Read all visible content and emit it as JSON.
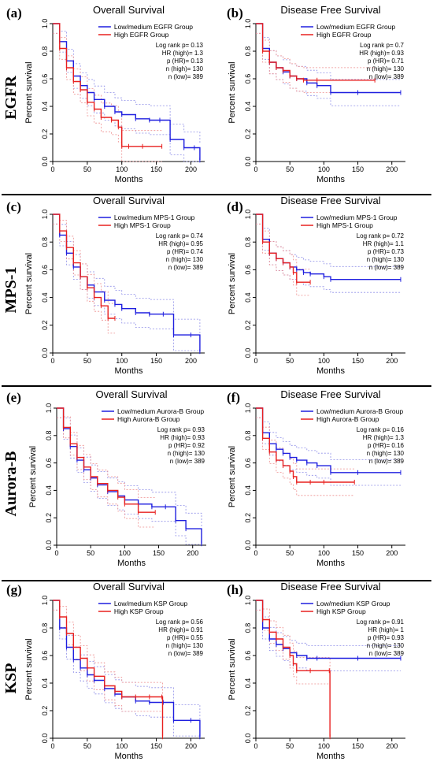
{
  "colors": {
    "low": "#1f1fdf",
    "high": "#e8201f",
    "low_ci": "#8f8fe8",
    "high_ci": "#ee8f8f"
  },
  "rows": [
    {
      "label": "EGFR"
    },
    {
      "label": "MPS-1"
    },
    {
      "label": "Aurora-B"
    },
    {
      "label": "KSP"
    }
  ],
  "chart_data": [
    {
      "panel": "(a)",
      "type": "line",
      "title": "Overall Survival",
      "xlabel": "Months",
      "ylabel": "Percent survival",
      "xlim": [
        0,
        220
      ],
      "ylim": [
        0,
        1
      ],
      "xticks": [
        "0",
        "50",
        "100",
        "150",
        "200"
      ],
      "yticks": [
        "0.0",
        "0.2",
        "0.4",
        "0.6",
        "0.8",
        "1.0"
      ],
      "legend": [
        "Low/medium EGFR Group",
        "High EGFR Group"
      ],
      "stats": [
        "Log rank p= 0.13",
        "HR (high)= 1.3",
        "p (HR)= 0.13",
        "n (high)= 130",
        "n (low)= 389"
      ],
      "series": [
        {
          "name": "Low/medium EGFR Group",
          "x": [
            0,
            10,
            20,
            30,
            40,
            50,
            60,
            75,
            90,
            100,
            120,
            140,
            155,
            170,
            190,
            205,
            213
          ],
          "y": [
            1,
            0.87,
            0.73,
            0.62,
            0.55,
            0.5,
            0.45,
            0.4,
            0.36,
            0.34,
            0.31,
            0.3,
            0.3,
            0.16,
            0.1,
            0.1,
            0.01
          ]
        },
        {
          "name": "High EGFR Group",
          "x": [
            0,
            10,
            20,
            30,
            40,
            50,
            60,
            70,
            85,
            95,
            100,
            110,
            130,
            158
          ],
          "y": [
            1,
            0.82,
            0.68,
            0.58,
            0.52,
            0.43,
            0.38,
            0.32,
            0.3,
            0.25,
            0.11,
            0.11,
            0.11,
            0.11
          ]
        }
      ]
    },
    {
      "panel": "(b)",
      "type": "line",
      "title": "Disease Free Survival",
      "xlabel": "Months",
      "ylabel": "Percent survival",
      "xlim": [
        0,
        220
      ],
      "ylim": [
        0,
        1
      ],
      "xticks": [
        "0",
        "50",
        "100",
        "150",
        "200"
      ],
      "yticks": [
        "0.0",
        "0.2",
        "0.4",
        "0.6",
        "0.8",
        "1.0"
      ],
      "legend": [
        "Low/medium EGFR Group",
        "High EGFR Group"
      ],
      "stats": [
        "Log rank p= 0.7",
        "HR (high)= 0.93",
        "p (HR)= 0.71",
        "n (high)= 130",
        "n (low)= 389"
      ],
      "series": [
        {
          "name": "Low/medium EGFR Group",
          "x": [
            0,
            10,
            20,
            30,
            40,
            50,
            60,
            75,
            90,
            110,
            150,
            213
          ],
          "y": [
            1,
            0.82,
            0.72,
            0.68,
            0.65,
            0.62,
            0.6,
            0.57,
            0.55,
            0.5,
            0.5,
            0.5
          ]
        },
        {
          "name": "High EGFR Group",
          "x": [
            0,
            10,
            20,
            30,
            40,
            50,
            60,
            70,
            90,
            175
          ],
          "y": [
            1,
            0.8,
            0.72,
            0.68,
            0.66,
            0.62,
            0.6,
            0.59,
            0.59,
            0.59
          ]
        }
      ]
    },
    {
      "panel": "(c)",
      "type": "line",
      "title": "Overall Survival",
      "xlabel": "Months",
      "ylabel": "Percent survival",
      "xlim": [
        0,
        220
      ],
      "ylim": [
        0,
        1
      ],
      "xticks": [
        "0",
        "50",
        "100",
        "150",
        "200"
      ],
      "yticks": [
        "0.0",
        "0.2",
        "0.4",
        "0.6",
        "0.8",
        "1.0"
      ],
      "legend": [
        "Low/medium MPS-1 Group",
        "High MPS-1 Group"
      ],
      "stats": [
        "Log rank p= 0.74",
        "HR (high)= 0.95",
        "p (HR)= 0.74",
        "n (high)= 130",
        "n (low)= 389"
      ],
      "series": [
        {
          "name": "Low/medium MPS-1 Group",
          "x": [
            0,
            10,
            20,
            30,
            40,
            50,
            60,
            75,
            90,
            100,
            120,
            140,
            160,
            175,
            200,
            213
          ],
          "y": [
            1,
            0.85,
            0.72,
            0.62,
            0.55,
            0.49,
            0.44,
            0.38,
            0.35,
            0.32,
            0.29,
            0.28,
            0.28,
            0.13,
            0.13,
            0.01
          ]
        },
        {
          "name": "High MPS-1 Group",
          "x": [
            0,
            10,
            20,
            30,
            40,
            50,
            60,
            70,
            80,
            90
          ],
          "y": [
            1,
            0.88,
            0.76,
            0.65,
            0.55,
            0.47,
            0.4,
            0.34,
            0.25,
            0.25
          ]
        }
      ]
    },
    {
      "panel": "(d)",
      "type": "line",
      "title": "Disease Free Survival",
      "xlabel": "Months",
      "ylabel": "Percent survival",
      "xlim": [
        0,
        220
      ],
      "ylim": [
        0,
        1
      ],
      "xticks": [
        "0",
        "50",
        "100",
        "150",
        "200"
      ],
      "yticks": [
        "0.0",
        "0.2",
        "0.4",
        "0.6",
        "0.8",
        "1.0"
      ],
      "legend": [
        "Low/medium MPS-1 Group",
        "High MPS-1 Group"
      ],
      "stats": [
        "Log rank p= 0.72",
        "HR (high)= 1.1",
        "p (HR)= 0.73",
        "n (high)= 130",
        "n (low)= 389"
      ],
      "series": [
        {
          "name": "Low/medium MPS-1 Group",
          "x": [
            0,
            10,
            20,
            30,
            40,
            50,
            60,
            70,
            80,
            100,
            110,
            213
          ],
          "y": [
            1,
            0.82,
            0.72,
            0.68,
            0.65,
            0.62,
            0.6,
            0.58,
            0.57,
            0.55,
            0.53,
            0.53
          ]
        },
        {
          "name": "High MPS-1 Group",
          "x": [
            0,
            10,
            20,
            30,
            40,
            50,
            55,
            60,
            80
          ],
          "y": [
            1,
            0.8,
            0.72,
            0.68,
            0.65,
            0.62,
            0.58,
            0.51,
            0.51
          ]
        }
      ]
    },
    {
      "panel": "(e)",
      "type": "line",
      "title": "Overall Survival",
      "xlabel": "Months",
      "ylabel": "Percent survival",
      "xlim": [
        0,
        220
      ],
      "ylim": [
        0,
        1
      ],
      "xticks": [
        "0",
        "50",
        "100",
        "150",
        "200"
      ],
      "yticks": [
        "0.0",
        "0.2",
        "0.4",
        "0.6",
        "0.8",
        "1.0"
      ],
      "legend": [
        "Low/medium Aurora-B Group",
        "High Aurora-B Group"
      ],
      "stats": [
        "Log rank p= 0.93",
        "HR (high)= 0.93",
        "p (HR)= 0.92",
        "n (high)= 130",
        "n (low)= 389"
      ],
      "series": [
        {
          "name": "Low/medium Aurora-B Group",
          "x": [
            0,
            10,
            20,
            30,
            40,
            50,
            60,
            75,
            90,
            100,
            120,
            140,
            160,
            175,
            190,
            213
          ],
          "y": [
            1,
            0.85,
            0.72,
            0.62,
            0.55,
            0.49,
            0.44,
            0.39,
            0.36,
            0.33,
            0.3,
            0.28,
            0.28,
            0.18,
            0.12,
            0.01
          ]
        },
        {
          "name": "High Aurora-B Group",
          "x": [
            0,
            10,
            20,
            30,
            40,
            50,
            60,
            75,
            90,
            100,
            120,
            145
          ],
          "y": [
            1,
            0.86,
            0.74,
            0.64,
            0.57,
            0.5,
            0.45,
            0.4,
            0.35,
            0.3,
            0.24,
            0.24
          ]
        }
      ]
    },
    {
      "panel": "(f)",
      "type": "line",
      "title": "Disease Free Survival",
      "xlabel": "Months",
      "ylabel": "Percent survival",
      "xlim": [
        0,
        220
      ],
      "ylim": [
        0,
        1
      ],
      "xticks": [
        "0",
        "50",
        "100",
        "150",
        "200"
      ],
      "yticks": [
        "0.0",
        "0.2",
        "0.4",
        "0.6",
        "0.8",
        "1.0"
      ],
      "legend": [
        "Low/medium Aurora-B Group",
        "High Aurora-B Group"
      ],
      "stats": [
        "Log rank p= 0.16",
        "HR (high)= 1.3",
        "p (HR)= 0.16",
        "n (high)= 130",
        "n (low)= 389"
      ],
      "series": [
        {
          "name": "Low/medium Aurora-B Group",
          "x": [
            0,
            10,
            20,
            30,
            40,
            50,
            60,
            75,
            90,
            110,
            150,
            213
          ],
          "y": [
            1,
            0.82,
            0.74,
            0.7,
            0.67,
            0.64,
            0.62,
            0.6,
            0.58,
            0.53,
            0.53,
            0.53
          ]
        },
        {
          "name": "High Aurora-B Group",
          "x": [
            0,
            10,
            20,
            30,
            40,
            50,
            55,
            60,
            80,
            100,
            145
          ],
          "y": [
            1,
            0.78,
            0.68,
            0.62,
            0.58,
            0.54,
            0.5,
            0.46,
            0.46,
            0.46,
            0.46
          ]
        }
      ]
    },
    {
      "panel": "(g)",
      "type": "line",
      "title": "Overall Survival",
      "xlabel": "Months",
      "ylabel": "Percent survival",
      "xlim": [
        0,
        220
      ],
      "ylim": [
        0,
        1
      ],
      "xticks": [
        "0",
        "50",
        "100",
        "150",
        "200"
      ],
      "yticks": [
        "0.0",
        "0.2",
        "0.4",
        "0.6",
        "0.8",
        "1.0"
      ],
      "legend": [
        "Low/medium KSP Group",
        "High KSP Group"
      ],
      "stats": [
        "Log rank p= 0.56",
        "HR (high)= 0.91",
        "p (HR)= 0.55",
        "n (high)= 130",
        "n (low)= 389"
      ],
      "series": [
        {
          "name": "Low/medium KSP Group",
          "x": [
            0,
            10,
            20,
            30,
            40,
            50,
            60,
            75,
            90,
            100,
            120,
            140,
            160,
            175,
            200,
            213
          ],
          "y": [
            1,
            0.8,
            0.66,
            0.57,
            0.51,
            0.46,
            0.42,
            0.36,
            0.32,
            0.3,
            0.27,
            0.26,
            0.26,
            0.13,
            0.13,
            0.01
          ]
        },
        {
          "name": "High KSP Group",
          "x": [
            0,
            10,
            20,
            30,
            40,
            50,
            60,
            75,
            90,
            100,
            120,
            140,
            158,
            159
          ],
          "y": [
            1,
            0.88,
            0.76,
            0.66,
            0.58,
            0.51,
            0.45,
            0.38,
            0.34,
            0.3,
            0.3,
            0.3,
            0.3,
            0.01
          ]
        }
      ]
    },
    {
      "panel": "(h)",
      "type": "line",
      "title": "Disease Free Survival",
      "xlabel": "Months",
      "ylabel": "Percent survival",
      "xlim": [
        0,
        220
      ],
      "ylim": [
        0,
        1
      ],
      "xticks": [
        "0",
        "50",
        "100",
        "150",
        "200"
      ],
      "yticks": [
        "0.0",
        "0.2",
        "0.4",
        "0.6",
        "0.8",
        "1.0"
      ],
      "legend": [
        "Low/medium KSP Group",
        "High KSP Group"
      ],
      "stats": [
        "Log rank p= 0.91",
        "HR (high)= 1",
        "p (HR)= 0.93",
        "n (high)= 130",
        "n (low)= 389"
      ],
      "series": [
        {
          "name": "Low/medium KSP Group",
          "x": [
            0,
            10,
            20,
            30,
            40,
            50,
            60,
            75,
            90,
            150,
            213
          ],
          "y": [
            1,
            0.8,
            0.72,
            0.68,
            0.65,
            0.62,
            0.6,
            0.58,
            0.58,
            0.58,
            0.58
          ]
        },
        {
          "name": "High KSP Group",
          "x": [
            0,
            10,
            20,
            30,
            40,
            50,
            55,
            60,
            80,
            108,
            109
          ],
          "y": [
            1,
            0.86,
            0.77,
            0.72,
            0.66,
            0.6,
            0.54,
            0.49,
            0.49,
            0.49,
            0.01
          ]
        }
      ]
    }
  ]
}
